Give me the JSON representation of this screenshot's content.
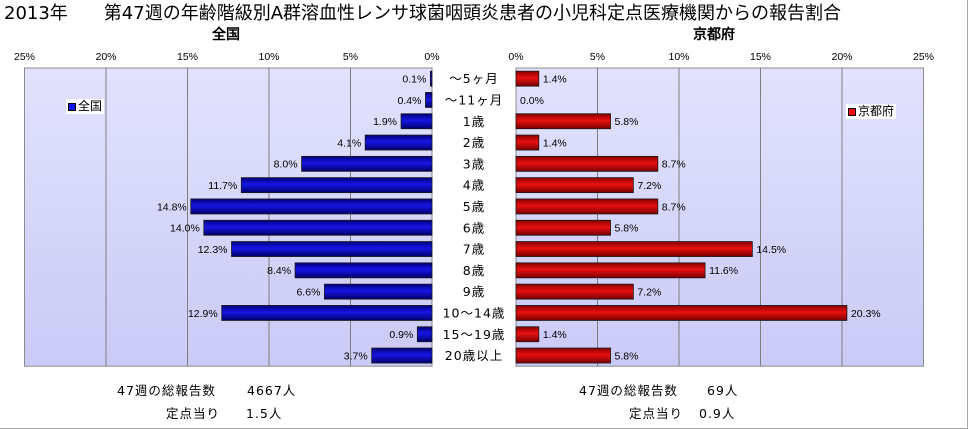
{
  "colors": {
    "national_bar": "#1616e6",
    "kyoto_bar": "#e81010",
    "plot_background": "#cacaf6",
    "gridline": "#7f7f7f"
  },
  "chart_data": {
    "type": "bar",
    "orientation": "horizontal",
    "title": "2013年　　第47週の年齢階級別A群溶血性レンサ球菌咽頭炎患者の小児科定点医療機関からの報告割合",
    "categories": [
      "～5ヶ月",
      "～11ヶ月",
      "1歳",
      "2歳",
      "3歳",
      "4歳",
      "5歳",
      "6歳",
      "7歳",
      "8歳",
      "9歳",
      "10～14歳",
      "15～19歳",
      "20歳以上"
    ],
    "xlim": [
      0,
      25
    ],
    "grid": true,
    "panels": [
      {
        "title": "全国",
        "direction": "leftward",
        "legend": "top-left",
        "ticks": [
          {
            "value": 25,
            "label": "25%"
          },
          {
            "value": 20,
            "label": "20%"
          },
          {
            "value": 15,
            "label": "15%"
          },
          {
            "value": 10,
            "label": "10%"
          },
          {
            "value": 5,
            "label": "5%"
          },
          {
            "value": 0,
            "label": "0%"
          }
        ],
        "series": [
          {
            "name": "全国",
            "values": [
              0.1,
              0.4,
              1.9,
              4.1,
              8.0,
              11.7,
              14.8,
              14.0,
              12.3,
              8.4,
              6.6,
              12.9,
              0.9,
              3.7
            ],
            "labels": [
              "0.1%",
              "0.4%",
              "1.9%",
              "4.1%",
              "8.0%",
              "11.7%",
              "14.8%",
              "14.0%",
              "12.3%",
              "8.4%",
              "6.6%",
              "12.9%",
              "0.9%",
              "3.7%"
            ]
          }
        ]
      },
      {
        "title": "京都府",
        "direction": "rightward",
        "legend": "top-right",
        "ticks": [
          {
            "value": 0,
            "label": "0%"
          },
          {
            "value": 5,
            "label": "5%"
          },
          {
            "value": 10,
            "label": "10%"
          },
          {
            "value": 15,
            "label": "15%"
          },
          {
            "value": 20,
            "label": "20%"
          },
          {
            "value": 25,
            "label": "25%"
          }
        ],
        "series": [
          {
            "name": "京都府",
            "values": [
              1.4,
              0.0,
              5.8,
              1.4,
              8.7,
              7.2,
              8.7,
              5.8,
              14.5,
              11.6,
              7.2,
              20.3,
              1.4,
              5.8
            ],
            "labels": [
              "1.4%",
              "0.0%",
              "5.8%",
              "1.4%",
              "8.7%",
              "7.2%",
              "8.7%",
              "5.8%",
              "14.5%",
              "11.6%",
              "7.2%",
              "20.3%",
              "1.4%",
              "5.8%"
            ]
          }
        ]
      }
    ]
  },
  "summary": {
    "national": {
      "total_label": "47週の総報告数",
      "total_value": "4667人",
      "per_site_label": "定点当り",
      "per_site_value": "1.5人"
    },
    "kyoto": {
      "total_label": "47週の総報告数",
      "total_value": "69人",
      "per_site_label": "定点当り",
      "per_site_value": "0.9人"
    }
  }
}
